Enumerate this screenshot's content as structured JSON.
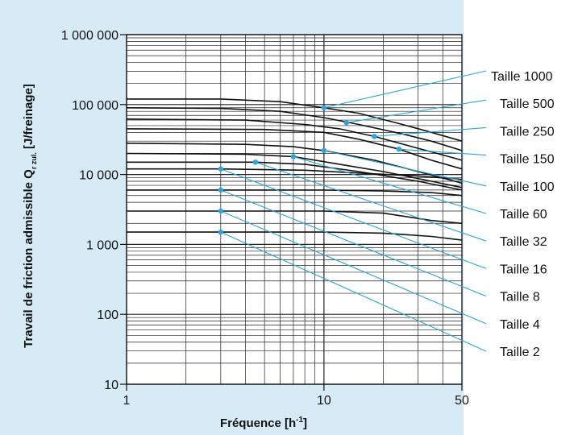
{
  "chart_data": {
    "type": "line",
    "title": "",
    "x_scale": "log",
    "y_scale": "log",
    "xlim": [
      1,
      50
    ],
    "ylim": [
      10,
      1000000
    ],
    "xlabel": "Fréquence [h",
    "xlabel_sup": "-1",
    "xlabel_end": "]",
    "ylabel": "Travail de friction admissible Q",
    "ylabel_sub": "r zul.",
    "ylabel_end": " [J/freinage]",
    "x_ticks": [
      {
        "value": 1,
        "label": "1"
      },
      {
        "value": 10,
        "label": "10"
      },
      {
        "value": 50,
        "label": "50"
      }
    ],
    "y_ticks": [
      {
        "value": 10,
        "label": "10"
      },
      {
        "value": 100,
        "label": "100"
      },
      {
        "value": 1000,
        "label": "1 000"
      },
      {
        "value": 10000,
        "label": "10 000"
      },
      {
        "value": 100000,
        "label": "100 000"
      },
      {
        "value": 1000000,
        "label": "1 000 000"
      }
    ],
    "grid": true,
    "legend": "right",
    "series": [
      {
        "name": "Taille 1000",
        "marker": [
          10,
          90000
        ],
        "points": [
          [
            1,
            120000
          ],
          [
            3,
            120000
          ],
          [
            6,
            110000
          ],
          [
            10,
            90000
          ],
          [
            15,
            75000
          ],
          [
            25,
            52000
          ],
          [
            35,
            40000
          ],
          [
            50,
            30000
          ]
        ]
      },
      {
        "name": "Taille 500",
        "marker": [
          13,
          55000
        ],
        "points": [
          [
            1,
            90000
          ],
          [
            3,
            88000
          ],
          [
            6,
            80000
          ],
          [
            10,
            65000
          ],
          [
            15,
            52000
          ],
          [
            25,
            38000
          ],
          [
            35,
            30000
          ],
          [
            50,
            22000
          ]
        ]
      },
      {
        "name": "Taille 250",
        "marker": [
          18,
          35000
        ],
        "points": [
          [
            1,
            62000
          ],
          [
            4,
            60000
          ],
          [
            8,
            52000
          ],
          [
            12,
            45000
          ],
          [
            18,
            35000
          ],
          [
            28,
            25000
          ],
          [
            40,
            19000
          ],
          [
            50,
            16000
          ]
        ]
      },
      {
        "name": "Taille 150",
        "marker": [
          24,
          23000
        ],
        "points": [
          [
            1,
            45000
          ],
          [
            5,
            44000
          ],
          [
            10,
            40000
          ],
          [
            15,
            32000
          ],
          [
            24,
            23000
          ],
          [
            35,
            16000
          ],
          [
            50,
            12000
          ]
        ]
      },
      {
        "name": "Taille 100",
        "marker": [
          10,
          22000
        ],
        "points": [
          [
            1,
            28000
          ],
          [
            4,
            27000
          ],
          [
            7,
            25000
          ],
          [
            10,
            22000
          ],
          [
            18,
            16000
          ],
          [
            30,
            11000
          ],
          [
            50,
            7500
          ]
        ]
      },
      {
        "name": "Taille 60",
        "marker": [
          7,
          18000
        ],
        "points": [
          [
            1,
            20000
          ],
          [
            4,
            19500
          ],
          [
            7,
            18000
          ],
          [
            12,
            14000
          ],
          [
            20,
            11000
          ],
          [
            35,
            8000
          ],
          [
            50,
            6500
          ]
        ]
      },
      {
        "name": "Taille 32",
        "marker": [
          4.5,
          15000
        ],
        "points": [
          [
            1,
            15000
          ],
          [
            4.5,
            15000
          ],
          [
            8,
            14000
          ],
          [
            15,
            11000
          ],
          [
            30,
            8000
          ],
          [
            50,
            6000
          ]
        ]
      },
      {
        "name": "Taille 16",
        "marker": [
          3,
          12000
        ],
        "points": [
          [
            1,
            12000
          ],
          [
            3,
            12000
          ],
          [
            8,
            11500
          ],
          [
            15,
            10500
          ],
          [
            30,
            9500
          ],
          [
            50,
            8500
          ]
        ]
      },
      {
        "name": "Taille 8",
        "marker": [
          3,
          6000
        ],
        "points": [
          [
            1,
            6000
          ],
          [
            3,
            6000
          ],
          [
            10,
            6000
          ],
          [
            20,
            5800
          ],
          [
            35,
            5500
          ],
          [
            50,
            5000
          ]
        ]
      },
      {
        "name": "Taille 4",
        "marker": [
          3,
          3000
        ],
        "points": [
          [
            1,
            3000
          ],
          [
            3,
            3000
          ],
          [
            10,
            3000
          ],
          [
            20,
            2800
          ],
          [
            35,
            2200
          ],
          [
            50,
            2000
          ]
        ]
      },
      {
        "name": "Taille 2",
        "marker": [
          3,
          1500
        ],
        "points": [
          [
            1,
            1500
          ],
          [
            3,
            1500
          ],
          [
            10,
            1500
          ],
          [
            20,
            1450
          ],
          [
            35,
            1300
          ],
          [
            50,
            1150
          ]
        ]
      }
    ]
  }
}
